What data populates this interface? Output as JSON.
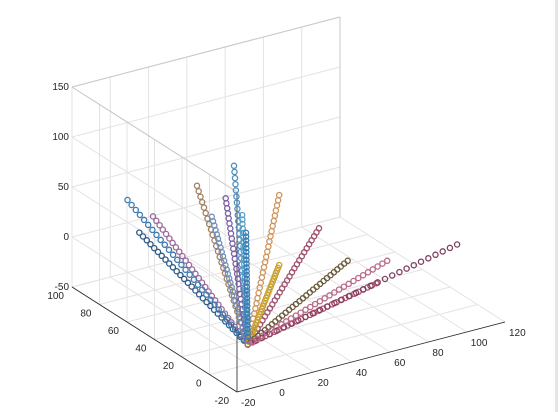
{
  "chart_data": {
    "type": "scatter3d",
    "title": "",
    "xlabel": "",
    "ylabel": "",
    "zlabel": "",
    "xlim": [
      -20,
      120
    ],
    "ylim": [
      -20,
      100
    ],
    "zlim": [
      -50,
      150
    ],
    "grid": true,
    "legend": "none",
    "marker": "circle-open",
    "x_ticks": [
      "-20",
      "0",
      "20",
      "40",
      "60",
      "80",
      "100",
      "120"
    ],
    "y_ticks": [
      "-20",
      "0",
      "20",
      "40",
      "60",
      "80",
      "100"
    ],
    "z_ticks": [
      "-50",
      "0",
      "50",
      "100",
      "150"
    ],
    "origin": [
      0,
      0,
      -30
    ],
    "points_per_series": 30,
    "series": [
      {
        "color": "#4f8fbf",
        "end": [
          0,
          10,
          140
        ]
      },
      {
        "color": "#9c6b9c",
        "end": [
          -10,
          55,
          55
        ]
      },
      {
        "color": "#2e5b87",
        "end": [
          -10,
          65,
          30
        ]
      },
      {
        "color": "#3d7ab0",
        "end": [
          -14,
          68,
          62
        ]
      },
      {
        "color": "#a08060",
        "end": [
          -5,
          30,
          105
        ]
      },
      {
        "color": "#6f8fbf",
        "end": [
          -3,
          22,
          80
        ]
      },
      {
        "color": "#7a5fa6",
        "end": [
          10,
          30,
          85
        ]
      },
      {
        "color": "#d0935a",
        "end": [
          20,
          5,
          105
        ]
      },
      {
        "color": "#9d4f6e",
        "end": [
          30,
          -10,
          80
        ]
      },
      {
        "color": "#58a0c8",
        "end": [
          15,
          25,
          70
        ]
      },
      {
        "color": "#c8a030",
        "end": [
          20,
          5,
          35
        ]
      },
      {
        "color": "#6a5a3a",
        "end": [
          45,
          -10,
          40
        ]
      },
      {
        "color": "#b04a6a",
        "end": [
          60,
          -10,
          10
        ]
      },
      {
        "color": "#7f3f5f",
        "end": [
          95,
          -20,
          40
        ]
      },
      {
        "color": "#3a7fb5",
        "end": [
          12,
          18,
          60
        ]
      },
      {
        "color": "#b86a8a",
        "end": [
          80,
          10,
          5
        ]
      }
    ]
  }
}
